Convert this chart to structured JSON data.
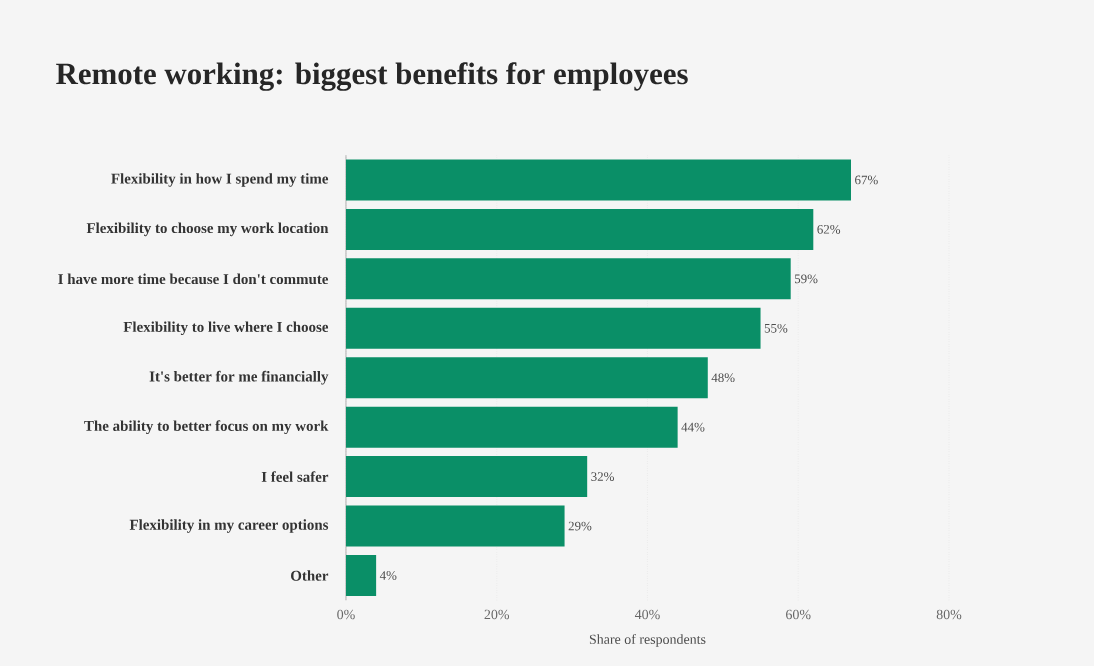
{
  "chart_data": {
    "type": "bar",
    "orientation": "horizontal",
    "title": "Remote working: biggest benefits for employees",
    "xlabel": "Share of respondents",
    "categories": [
      "Flexibility in how I spend my time",
      "Flexibility to choose my work location",
      "I have more time because I don't commute",
      "Flexibility to live where I choose",
      "It's better for me financially",
      "The ability to better focus on my work",
      "I feel safer",
      "Flexibility in my career options",
      "Other"
    ],
    "values": [
      67,
      62,
      59,
      55,
      48,
      44,
      32,
      29,
      4
    ],
    "value_labels": [
      "67%",
      "62%",
      "59%",
      "55%",
      "48%",
      "44%",
      "32%",
      "29%",
      "4%"
    ],
    "color": "#0a8f67",
    "xlim": [
      0,
      80
    ],
    "xticks": [
      {
        "value": 0,
        "label": "0%"
      },
      {
        "value": 20,
        "label": "20%"
      },
      {
        "value": 40,
        "label": "40%"
      },
      {
        "value": 60,
        "label": "60%"
      },
      {
        "value": 80,
        "label": "80%"
      }
    ],
    "grid": "x"
  }
}
